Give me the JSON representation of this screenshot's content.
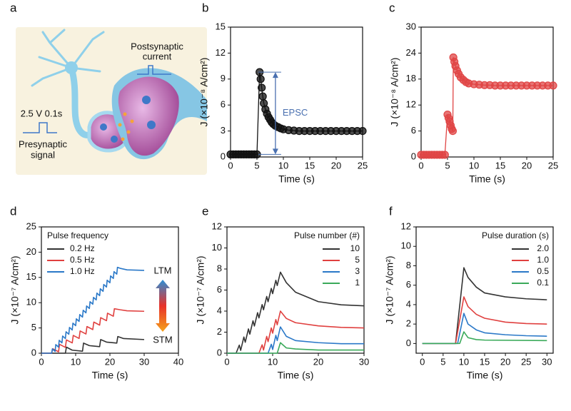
{
  "illustration": {
    "panel": "a",
    "post_label": [
      "Postsynaptic",
      "current"
    ],
    "pulse_label": "2.5 V 0.1s",
    "pre_label": [
      "Presynaptic",
      "signal"
    ]
  },
  "chart_data": [
    {
      "panel": "b",
      "type": "scatter",
      "xlabel": "Time (s)",
      "ylabel": "J (×10⁻⁸ A/cm²)",
      "color": "#111111",
      "annotation": "EPSC",
      "xlim": [
        0,
        25
      ],
      "xticks": [
        0,
        5,
        10,
        15,
        20,
        25
      ],
      "ylim": [
        0,
        15
      ],
      "yticks": [
        0,
        3,
        6,
        9,
        12,
        15
      ],
      "x": [
        0,
        0.5,
        1,
        1.5,
        2,
        2.5,
        3,
        3.5,
        4,
        4.5,
        5,
        5.5,
        5.7,
        5.9,
        6.1,
        6.3,
        6.6,
        6.9,
        7.2,
        7.5,
        7.8,
        8.1,
        8.5,
        9,
        9.5,
        10,
        11,
        12,
        13,
        14,
        15,
        16,
        17,
        18,
        19,
        20,
        21,
        22,
        23,
        24,
        25
      ],
      "values": [
        0.3,
        0.3,
        0.3,
        0.3,
        0.3,
        0.3,
        0.3,
        0.3,
        0.3,
        0.3,
        0.3,
        9.8,
        9.0,
        8.0,
        7.0,
        6.2,
        5.5,
        5.0,
        4.6,
        4.3,
        4.0,
        3.8,
        3.6,
        3.45,
        3.3,
        3.2,
        3.1,
        3.05,
        3.0,
        3.0,
        3.0,
        3.0,
        3.0,
        3.0,
        3.0,
        3.0,
        3.0,
        3.0,
        3.0,
        3.0,
        3.0
      ]
    },
    {
      "panel": "c",
      "type": "scatter",
      "xlabel": "Time (s)",
      "ylabel": "J (×10⁻⁸ A/cm²)",
      "color": "#e04545",
      "xlim": [
        0,
        25
      ],
      "xticks": [
        0,
        5,
        10,
        15,
        20,
        25
      ],
      "ylim": [
        0,
        30
      ],
      "yticks": [
        0,
        6,
        12,
        18,
        24,
        30
      ],
      "x": [
        0,
        0.5,
        1,
        1.5,
        2,
        2.5,
        3,
        3.5,
        4,
        4.5,
        5.0,
        5.2,
        5.4,
        5.6,
        5.8,
        6.0,
        6.1,
        6.3,
        6.5,
        6.8,
        7.1,
        7.5,
        8,
        8.5,
        9,
        10,
        11,
        12,
        13,
        14,
        15,
        16,
        17,
        18,
        19,
        20,
        21,
        22,
        23,
        24,
        25
      ],
      "values": [
        0.5,
        0.5,
        0.5,
        0.5,
        0.5,
        0.5,
        0.5,
        0.5,
        0.5,
        0.5,
        9.8,
        9.0,
        8.2,
        7.3,
        6.5,
        6.0,
        23.0,
        22.0,
        21.0,
        20.0,
        19.2,
        18.4,
        17.8,
        17.3,
        17.0,
        16.8,
        16.7,
        16.6,
        16.6,
        16.5,
        16.5,
        16.5,
        16.5,
        16.5,
        16.5,
        16.5,
        16.5,
        16.5,
        16.5,
        16.5,
        16.5
      ]
    },
    {
      "panel": "d",
      "type": "line",
      "xlabel": "Time (s)",
      "ylabel": "J (×10⁻⁷ A/cm²)",
      "legend": "upper left",
      "legend_title": "Pulse frequency",
      "annotations": [
        "LTM",
        "STM"
      ],
      "xlim": [
        0,
        40
      ],
      "xticks": [
        0,
        10,
        20,
        30,
        40
      ],
      "ylim": [
        0,
        25
      ],
      "yticks": [
        0,
        5,
        10,
        15,
        20,
        25
      ],
      "series": [
        {
          "name": "0.2 Hz",
          "color": "#333333",
          "x": [
            0,
            7,
            7.3,
            9,
            12,
            12.3,
            14,
            17,
            17.3,
            19,
            22,
            22.3,
            24,
            30
          ],
          "values": [
            0,
            0,
            1.2,
            0.6,
            0.4,
            2.0,
            1.5,
            1.3,
            2.7,
            2.2,
            2.0,
            3.3,
            2.9,
            2.7
          ]
        },
        {
          "name": "0.5 Hz",
          "color": "#e0403f",
          "x": [
            0,
            3,
            3.3,
            5,
            5.3,
            7,
            7.3,
            9,
            9.3,
            11,
            11.3,
            13,
            13.3,
            15,
            15.3,
            17,
            17.3,
            19,
            19.3,
            21,
            21.3,
            23,
            25,
            30
          ],
          "values": [
            0,
            0,
            0.88,
            0.28,
            1.76,
            1.16,
            2.64,
            2.04,
            3.52,
            2.92,
            4.4,
            3.8,
            5.28,
            4.68,
            6.16,
            5.56,
            7.04,
            6.44,
            7.92,
            7.32,
            8.8,
            8.6,
            8.4,
            8.3
          ]
        },
        {
          "name": "1.0 Hz",
          "color": "#2a78c8",
          "x": [
            0,
            3,
            3.2,
            4,
            4.2,
            5,
            5.2,
            6,
            6.2,
            7,
            7.2,
            8,
            8.2,
            9,
            9.2,
            10,
            10.2,
            11,
            11.2,
            12,
            12.2,
            13,
            13.2,
            14,
            14.2,
            15,
            15.2,
            16,
            16.2,
            17,
            17.2,
            18,
            18.2,
            19,
            19.2,
            20,
            20.2,
            21,
            21.2,
            22,
            22.2,
            23,
            25,
            30
          ],
          "values": [
            0,
            0,
            0.85,
            0.35,
            1.7,
            1.2,
            2.55,
            2.05,
            3.4,
            2.9,
            4.25,
            3.75,
            5.1,
            4.6,
            5.95,
            5.45,
            6.8,
            6.3,
            7.65,
            7.15,
            8.5,
            8.0,
            9.35,
            8.85,
            10.2,
            9.7,
            11.05,
            10.55,
            11.9,
            11.4,
            12.75,
            12.25,
            13.6,
            13.1,
            14.45,
            13.95,
            15.3,
            14.8,
            16.15,
            15.65,
            17.0,
            16.8,
            16.5,
            16.4
          ]
        }
      ]
    },
    {
      "panel": "e",
      "type": "line",
      "xlabel": "Time (s)",
      "ylabel": "J (×10⁻⁷ A/cm²)",
      "legend": "upper right",
      "legend_title": "Pulse number (#)",
      "xlim": [
        0,
        30
      ],
      "xticks": [
        0,
        10,
        20,
        30
      ],
      "ylim": [
        0,
        12
      ],
      "yticks": [
        0,
        2,
        4,
        6,
        8,
        10,
        12
      ],
      "series": [
        {
          "name": "10",
          "color": "#333333",
          "x": [
            0,
            2,
            2.7,
            3,
            3.7,
            4,
            4.7,
            5,
            5.7,
            6,
            6.7,
            7,
            7.7,
            8,
            8.7,
            9,
            9.7,
            10,
            10.7,
            11,
            11.7,
            13,
            15,
            20,
            25,
            30
          ],
          "values": [
            0,
            0,
            0.77,
            0.27,
            1.54,
            1.04,
            2.31,
            1.81,
            3.08,
            2.58,
            3.85,
            3.35,
            4.62,
            4.12,
            5.39,
            4.89,
            6.16,
            5.66,
            6.93,
            6.43,
            7.7,
            6.7,
            5.8,
            4.9,
            4.6,
            4.5
          ]
        },
        {
          "name": "5",
          "color": "#e0403f",
          "x": [
            0,
            7,
            7.7,
            8,
            8.7,
            9,
            9.7,
            10,
            10.7,
            11,
            11.7,
            13,
            15,
            20,
            25,
            30
          ],
          "values": [
            0,
            0,
            0.8,
            0.3,
            1.6,
            1.1,
            2.4,
            1.9,
            3.2,
            2.7,
            4.0,
            3.3,
            2.9,
            2.6,
            2.45,
            2.4
          ]
        },
        {
          "name": "3",
          "color": "#2a78c8",
          "x": [
            0,
            9,
            9.7,
            10,
            10.7,
            11,
            11.7,
            13,
            15,
            20,
            25,
            30
          ],
          "values": [
            0,
            0,
            0.85,
            0.35,
            1.7,
            1.2,
            2.5,
            1.6,
            1.2,
            1.0,
            0.9,
            0.9
          ]
        },
        {
          "name": "1",
          "color": "#3aaa5a",
          "x": [
            0,
            11,
            11.7,
            13,
            15,
            20,
            30
          ],
          "values": [
            0,
            0,
            1.0,
            0.5,
            0.4,
            0.3,
            0.3
          ]
        }
      ]
    },
    {
      "panel": "f",
      "type": "line",
      "xlabel": "Time (s)",
      "ylabel": "J (×10⁻⁷ A/cm²)",
      "legend": "upper right",
      "legend_title": "Pulse duration (s)",
      "xlim": [
        -1.5,
        31.5
      ],
      "xticks": [
        0,
        5,
        10,
        15,
        20,
        25,
        30
      ],
      "ylim": [
        -1,
        12
      ],
      "yticks": [
        0,
        2,
        4,
        6,
        8,
        10,
        12
      ],
      "series": [
        {
          "name": "2.0",
          "color": "#333333",
          "x": [
            0,
            8,
            10,
            11,
            13,
            15,
            20,
            25,
            30
          ],
          "values": [
            0,
            0,
            7.8,
            6.8,
            5.8,
            5.2,
            4.8,
            4.6,
            4.5
          ]
        },
        {
          "name": "1.0",
          "color": "#e0403f",
          "x": [
            0,
            8,
            10,
            11,
            13,
            15,
            20,
            25,
            30
          ],
          "values": [
            0,
            0,
            4.8,
            3.8,
            3.0,
            2.6,
            2.2,
            2.05,
            2.0
          ]
        },
        {
          "name": "0.5",
          "color": "#2a78c8",
          "x": [
            0,
            8.5,
            10,
            11,
            13,
            15,
            20,
            25,
            30
          ],
          "values": [
            0,
            0,
            3.1,
            2.0,
            1.4,
            1.1,
            0.9,
            0.8,
            0.75
          ]
        },
        {
          "name": "0.1",
          "color": "#3aaa5a",
          "x": [
            0,
            9,
            10,
            11,
            13,
            15,
            30
          ],
          "values": [
            0,
            0,
            1.2,
            0.6,
            0.4,
            0.35,
            0.3
          ]
        }
      ]
    }
  ]
}
